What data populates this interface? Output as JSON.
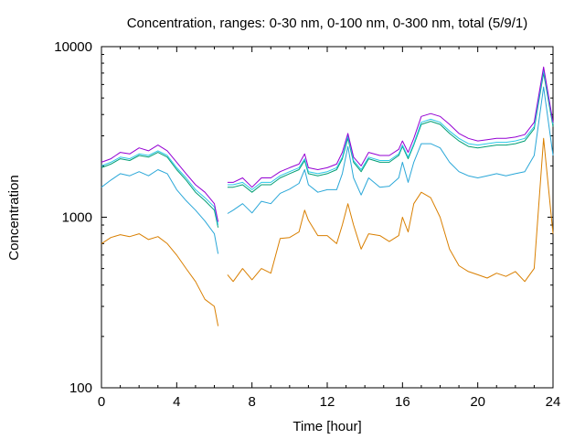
{
  "chart_data": {
    "type": "line",
    "title": "Concentration, ranges: 0-30 nm, 0-100 nm, 0-300 nm, total (5/9/1)",
    "xlabel": "Time [hour]",
    "ylabel": "Concentration",
    "xlim": [
      0,
      24
    ],
    "ylim": [
      100,
      10000
    ],
    "yscale": "log",
    "grid": false,
    "legend": "none",
    "x_ticks": [
      0,
      4,
      8,
      12,
      16,
      20,
      24
    ],
    "x_tick_labels": [
      "0",
      "4",
      "8",
      "12",
      "16",
      "20",
      "24"
    ],
    "y_ticks": [
      100,
      1000,
      10000
    ],
    "y_tick_labels": [
      "100",
      "1000",
      "10000"
    ],
    "gap": [
      6.2,
      6.7
    ],
    "x": [
      0,
      0.5,
      1,
      1.5,
      2,
      2.5,
      3,
      3.5,
      4,
      4.5,
      5,
      5.5,
      6,
      6.2,
      6.7,
      7,
      7.5,
      8,
      8.5,
      9,
      9.5,
      10,
      10.5,
      10.8,
      11,
      11.5,
      12,
      12.5,
      12.8,
      13.1,
      13.4,
      13.8,
      14.2,
      14.8,
      15.3,
      15.8,
      16,
      16.3,
      16.6,
      17,
      17.5,
      18,
      18.5,
      19,
      19.5,
      20,
      20.5,
      21,
      21.5,
      22,
      22.5,
      23,
      23.5,
      24
    ],
    "series": [
      {
        "color": "#d97f00",
        "values": [
          700,
          760,
          790,
          770,
          800,
          740,
          770,
          700,
          600,
          500,
          420,
          330,
          300,
          230,
          460,
          420,
          500,
          430,
          500,
          470,
          750,
          760,
          820,
          1100,
          960,
          780,
          780,
          700,
          900,
          1200,
          900,
          650,
          800,
          780,
          720,
          780,
          1000,
          820,
          1200,
          1400,
          1300,
          1000,
          650,
          520,
          480,
          460,
          440,
          470,
          450,
          480,
          420,
          500,
          2900,
          800
        ]
      },
      {
        "color": "#2aa7d8",
        "values": [
          1500,
          1650,
          1800,
          1750,
          1850,
          1750,
          1900,
          1800,
          1450,
          1250,
          1100,
          950,
          800,
          610,
          1050,
          1100,
          1200,
          1060,
          1240,
          1200,
          1380,
          1460,
          1580,
          1900,
          1550,
          1400,
          1450,
          1450,
          1800,
          2600,
          1700,
          1350,
          1700,
          1500,
          1520,
          1700,
          2100,
          1600,
          2100,
          2700,
          2700,
          2550,
          2100,
          1850,
          1750,
          1700,
          1750,
          1800,
          1750,
          1800,
          1850,
          2300,
          5800,
          2300
        ]
      },
      {
        "color": "#009e73",
        "values": [
          1950,
          2050,
          2200,
          2150,
          2300,
          2250,
          2400,
          2250,
          1900,
          1650,
          1400,
          1250,
          1100,
          870,
          1500,
          1500,
          1550,
          1400,
          1550,
          1550,
          1700,
          1800,
          1900,
          2150,
          1800,
          1750,
          1800,
          1900,
          2200,
          2900,
          2100,
          1850,
          2200,
          2100,
          2100,
          2300,
          2600,
          2200,
          2650,
          3500,
          3650,
          3500,
          3100,
          2800,
          2600,
          2550,
          2600,
          2650,
          2650,
          2700,
          2800,
          3300,
          7000,
          3400
        ]
      },
      {
        "color": "#2ac8e8",
        "values": [
          2000,
          2100,
          2250,
          2200,
          2350,
          2300,
          2450,
          2300,
          1950,
          1700,
          1450,
          1300,
          1150,
          900,
          1550,
          1550,
          1600,
          1450,
          1600,
          1600,
          1750,
          1850,
          1950,
          2200,
          1850,
          1800,
          1850,
          1950,
          2250,
          3000,
          2150,
          1900,
          2250,
          2150,
          2150,
          2350,
          2650,
          2250,
          2700,
          3600,
          3750,
          3600,
          3200,
          2900,
          2700,
          2650,
          2700,
          2750,
          2750,
          2800,
          2900,
          3400,
          7300,
          3500
        ]
      },
      {
        "color": "#9400d3",
        "values": [
          2100,
          2200,
          2400,
          2350,
          2550,
          2450,
          2650,
          2450,
          2100,
          1800,
          1550,
          1400,
          1200,
          940,
          1600,
          1600,
          1700,
          1500,
          1700,
          1700,
          1850,
          1950,
          2050,
          2350,
          1950,
          1900,
          1950,
          2050,
          2400,
          3100,
          2250,
          2000,
          2400,
          2300,
          2300,
          2500,
          2800,
          2400,
          2900,
          3900,
          4050,
          3900,
          3500,
          3100,
          2900,
          2800,
          2850,
          2900,
          2900,
          2950,
          3050,
          3600,
          7600,
          3600
        ]
      }
    ]
  }
}
